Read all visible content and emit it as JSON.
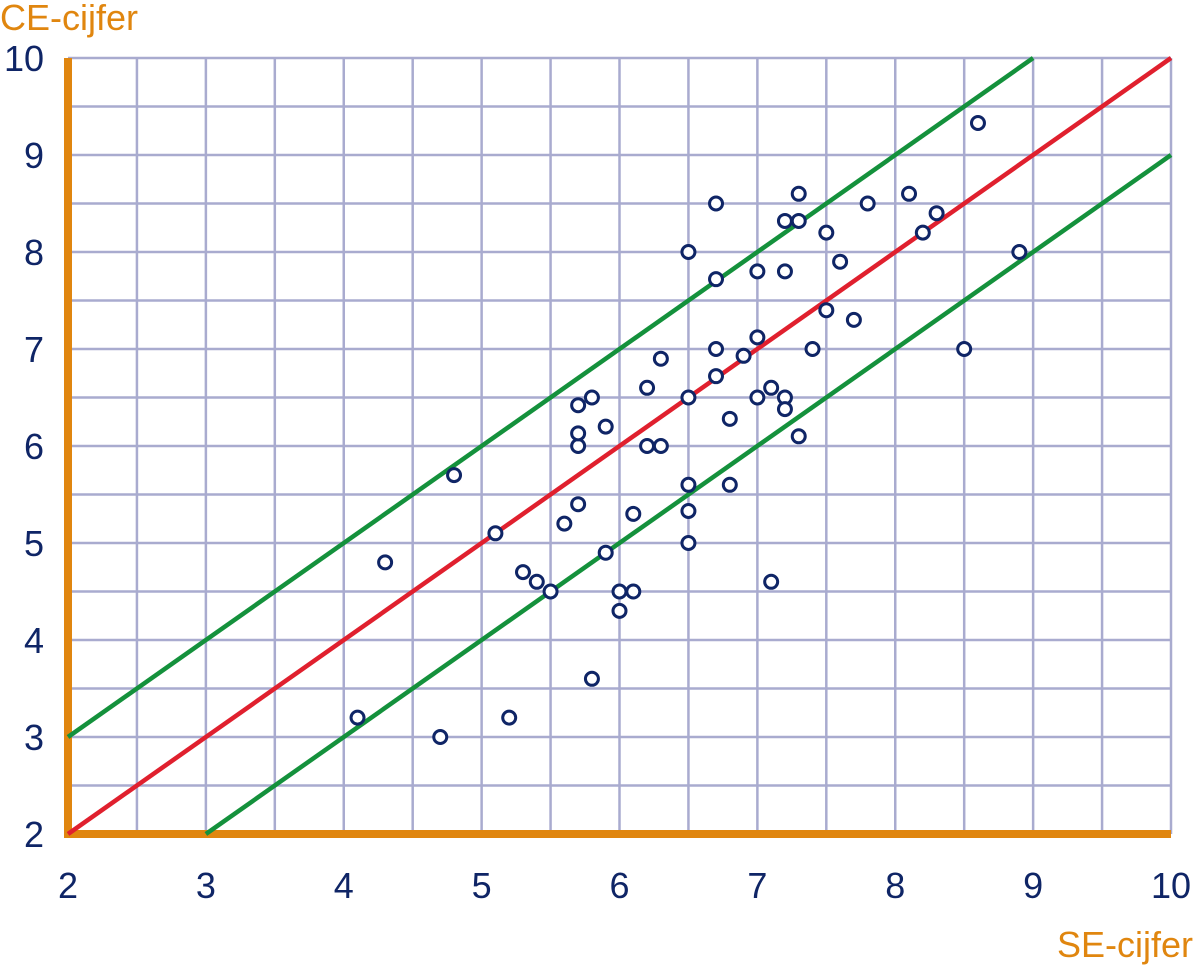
{
  "chart_data": {
    "type": "scatter",
    "title": "",
    "xlabel": "SE-cijfer",
    "ylabel": "CE-cijfer",
    "xlim": [
      2,
      10
    ],
    "ylim": [
      2,
      10
    ],
    "x_ticks": [
      "2",
      "3",
      "4",
      "5",
      "6",
      "7",
      "8",
      "9",
      "10"
    ],
    "y_ticks": [
      "2",
      "3",
      "4",
      "5",
      "6",
      "7",
      "8",
      "9",
      "10"
    ],
    "grid": true,
    "points": [
      {
        "x": 4.1,
        "y": 3.2
      },
      {
        "x": 4.3,
        "y": 4.8
      },
      {
        "x": 4.7,
        "y": 3.0
      },
      {
        "x": 4.8,
        "y": 5.7
      },
      {
        "x": 5.1,
        "y": 5.1
      },
      {
        "x": 5.2,
        "y": 3.2
      },
      {
        "x": 5.3,
        "y": 4.7
      },
      {
        "x": 5.4,
        "y": 4.6
      },
      {
        "x": 5.5,
        "y": 4.5
      },
      {
        "x": 5.6,
        "y": 5.2
      },
      {
        "x": 5.7,
        "y": 5.4
      },
      {
        "x": 5.7,
        "y": 6.0
      },
      {
        "x": 5.7,
        "y": 6.13
      },
      {
        "x": 5.7,
        "y": 6.42
      },
      {
        "x": 5.8,
        "y": 6.5
      },
      {
        "x": 5.8,
        "y": 3.6
      },
      {
        "x": 5.9,
        "y": 4.9
      },
      {
        "x": 5.9,
        "y": 6.2
      },
      {
        "x": 6.0,
        "y": 4.5
      },
      {
        "x": 6.0,
        "y": 4.3
      },
      {
        "x": 6.1,
        "y": 4.5
      },
      {
        "x": 6.1,
        "y": 5.3
      },
      {
        "x": 6.2,
        "y": 6.0
      },
      {
        "x": 6.2,
        "y": 6.6
      },
      {
        "x": 6.3,
        "y": 6.0
      },
      {
        "x": 6.3,
        "y": 6.9
      },
      {
        "x": 6.5,
        "y": 8.0
      },
      {
        "x": 6.5,
        "y": 6.5
      },
      {
        "x": 6.5,
        "y": 5.6
      },
      {
        "x": 6.5,
        "y": 5.33
      },
      {
        "x": 6.5,
        "y": 5.0
      },
      {
        "x": 6.7,
        "y": 8.5
      },
      {
        "x": 6.7,
        "y": 7.72
      },
      {
        "x": 6.7,
        "y": 7.0
      },
      {
        "x": 6.7,
        "y": 6.72
      },
      {
        "x": 6.8,
        "y": 6.28
      },
      {
        "x": 6.8,
        "y": 5.6
      },
      {
        "x": 6.9,
        "y": 6.93
      },
      {
        "x": 7.0,
        "y": 7.8
      },
      {
        "x": 7.0,
        "y": 7.12
      },
      {
        "x": 7.0,
        "y": 6.5
      },
      {
        "x": 7.1,
        "y": 6.6
      },
      {
        "x": 7.1,
        "y": 4.6
      },
      {
        "x": 7.2,
        "y": 8.32
      },
      {
        "x": 7.2,
        "y": 7.8
      },
      {
        "x": 7.2,
        "y": 6.5
      },
      {
        "x": 7.2,
        "y": 6.38
      },
      {
        "x": 7.3,
        "y": 8.6
      },
      {
        "x": 7.3,
        "y": 8.32
      },
      {
        "x": 7.3,
        "y": 6.1
      },
      {
        "x": 7.4,
        "y": 7.0
      },
      {
        "x": 7.5,
        "y": 8.2
      },
      {
        "x": 7.5,
        "y": 7.4
      },
      {
        "x": 7.6,
        "y": 7.9
      },
      {
        "x": 7.7,
        "y": 7.3
      },
      {
        "x": 7.8,
        "y": 8.5
      },
      {
        "x": 8.1,
        "y": 8.6
      },
      {
        "x": 8.2,
        "y": 8.2
      },
      {
        "x": 8.3,
        "y": 8.4
      },
      {
        "x": 8.5,
        "y": 7.0
      },
      {
        "x": 8.6,
        "y": 9.33
      },
      {
        "x": 8.9,
        "y": 8.0
      }
    ],
    "lines": [
      {
        "from": [
          2,
          3
        ],
        "to": [
          9,
          10
        ],
        "color": "#14913c"
      },
      {
        "from": [
          2,
          2
        ],
        "to": [
          10,
          10
        ],
        "color": "#e0202e"
      },
      {
        "from": [
          3,
          2
        ],
        "to": [
          10,
          9
        ],
        "color": "#14913c"
      }
    ],
    "colors": {
      "axis": "#e0860f",
      "grid": "#a9abcf",
      "points": "#0f2566",
      "tick_text": "#0f2566",
      "label_text": "#e0860f"
    }
  }
}
